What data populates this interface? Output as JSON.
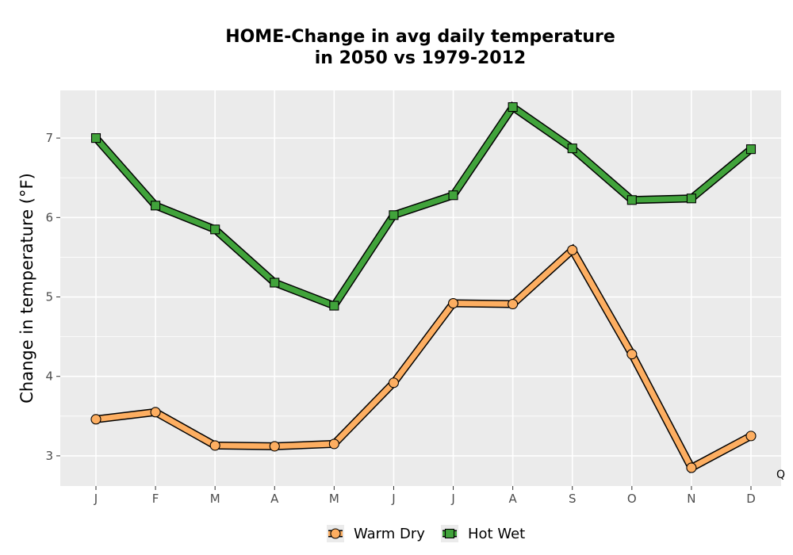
{
  "chart_data": {
    "type": "line",
    "title_line1": "HOME-Change in avg daily temperature",
    "title_line2": "in 2050 vs 1979-2012",
    "xlabel": "",
    "ylabel": "Change in temperature (°F)",
    "categories": [
      "J",
      "F",
      "M",
      "A",
      "M",
      "J",
      "J",
      "A",
      "S",
      "O",
      "N",
      "D"
    ],
    "yticks": [
      3,
      4,
      5,
      6,
      7
    ],
    "ylim": [
      2.62,
      7.6
    ],
    "grid": true,
    "legend_position": "bottom",
    "annotation": "Q",
    "series": [
      {
        "name": "Warm Dry",
        "marker": "circle",
        "color": "#FDAE61",
        "values": [
          3.46,
          3.55,
          3.13,
          3.12,
          3.15,
          3.92,
          4.92,
          4.91,
          5.59,
          4.28,
          2.85,
          3.25
        ]
      },
      {
        "name": "Hot Wet",
        "marker": "square",
        "color": "#41A33B",
        "values": [
          7.0,
          6.15,
          5.85,
          5.18,
          4.89,
          6.03,
          6.28,
          7.39,
          6.87,
          6.22,
          6.24,
          6.86
        ]
      }
    ]
  },
  "colors": {
    "panel": "#EBEBEB",
    "grid": "#FFFFFF",
    "outline": "#000000"
  }
}
